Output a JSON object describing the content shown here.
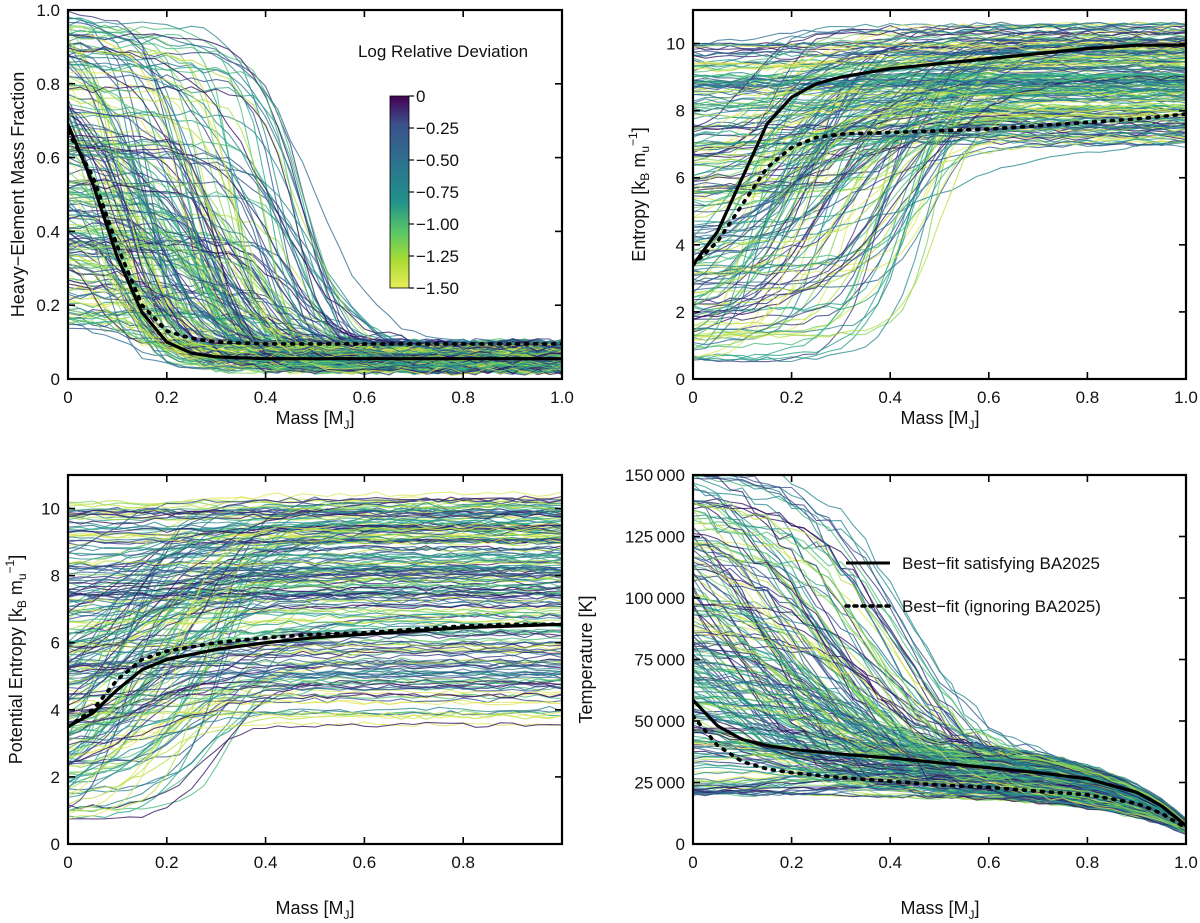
{
  "figure": {
    "colorbar_title": "Log Relative Deviation",
    "colorbar_ticks": [
      "0",
      "−0.25",
      "−0.50",
      "−0.75",
      "−1.00",
      "−1.25",
      "−1.50"
    ],
    "legend": {
      "solid": "Best−fit satisfying BA2025",
      "dotted": "Best−fit (ignoring BA2025)"
    },
    "xlabel_main": "Mass [M",
    "xlabel_sub": "J",
    "xlabel_end": "]"
  },
  "colors": {
    "viridis_dark": "#2c1a6e",
    "viridis_mid": "#24868e",
    "viridis_light": "#e3e94a",
    "best_fit": "#000000"
  },
  "chart_data": [
    {
      "type": "line",
      "ylabel": "Heavy−Element Mass Fraction",
      "xlabel": "Mass [MJ]",
      "xlim": [
        0,
        1.0
      ],
      "ylim": [
        0,
        1.0
      ],
      "xticks": [
        "0",
        "0.2",
        "0.4",
        "0.6",
        "0.8",
        "1.0"
      ],
      "yticks": [
        "0",
        "0.2",
        "0.4",
        "0.6",
        "0.8",
        "1.0"
      ],
      "series": [
        {
          "name": "Best−fit satisfying BA2025",
          "style": "solid",
          "x": [
            0,
            0.05,
            0.1,
            0.15,
            0.2,
            0.25,
            0.3,
            0.4,
            0.6,
            0.8,
            1.0
          ],
          "y": [
            0.69,
            0.53,
            0.33,
            0.18,
            0.1,
            0.07,
            0.06,
            0.055,
            0.055,
            0.055,
            0.055
          ]
        },
        {
          "name": "Best−fit (ignoring BA2025)",
          "style": "dotted",
          "x": [
            0,
            0.05,
            0.1,
            0.15,
            0.2,
            0.25,
            0.3,
            0.4,
            0.6,
            0.8,
            1.0
          ],
          "y": [
            0.67,
            0.55,
            0.36,
            0.2,
            0.13,
            0.11,
            0.1,
            0.095,
            0.095,
            0.095,
            0.095
          ]
        }
      ]
    },
    {
      "type": "line",
      "ylabel": "Entropy [kB mu⁻¹]",
      "xlabel": "Mass [MJ]",
      "xlim": [
        0,
        1.0
      ],
      "ylim": [
        0,
        11
      ],
      "xticks": [
        "0",
        "0.2",
        "0.4",
        "0.6",
        "0.8",
        "1.0"
      ],
      "yticks": [
        "0",
        "2",
        "4",
        "6",
        "8",
        "10"
      ],
      "series": [
        {
          "name": "Best−fit satisfying BA2025",
          "style": "solid",
          "x": [
            0,
            0.05,
            0.1,
            0.15,
            0.2,
            0.25,
            0.3,
            0.4,
            0.5,
            0.6,
            0.7,
            0.8,
            0.9,
            1.0
          ],
          "y": [
            3.4,
            4.4,
            6.0,
            7.6,
            8.4,
            8.8,
            9.0,
            9.25,
            9.4,
            9.55,
            9.7,
            9.85,
            9.95,
            9.95
          ]
        },
        {
          "name": "Best−fit (ignoring BA2025)",
          "style": "dotted",
          "x": [
            0,
            0.05,
            0.1,
            0.15,
            0.2,
            0.25,
            0.3,
            0.4,
            0.5,
            0.6,
            0.7,
            0.8,
            0.9,
            1.0
          ],
          "y": [
            3.4,
            4.1,
            5.2,
            6.3,
            6.9,
            7.2,
            7.3,
            7.35,
            7.4,
            7.45,
            7.55,
            7.65,
            7.75,
            7.9
          ]
        }
      ]
    },
    {
      "type": "line",
      "ylabel": "Potential Entropy [kB mu⁻¹]",
      "xlabel": "Mass [MJ]",
      "xlim": [
        0,
        1.0
      ],
      "ylim": [
        0,
        11
      ],
      "xticks": [
        "0",
        "0.2",
        "0.4",
        "0.6",
        "0.8"
      ],
      "yticks": [
        "0",
        "2",
        "4",
        "6",
        "8",
        "10"
      ],
      "series": [
        {
          "name": "Best−fit satisfying BA2025",
          "style": "solid",
          "x": [
            0,
            0.05,
            0.1,
            0.15,
            0.2,
            0.3,
            0.4,
            0.5,
            0.6,
            0.7,
            0.8,
            0.9,
            1.0
          ],
          "y": [
            3.5,
            3.9,
            4.6,
            5.2,
            5.5,
            5.8,
            6.0,
            6.15,
            6.25,
            6.35,
            6.45,
            6.5,
            6.55
          ]
        },
        {
          "name": "Best−fit (ignoring BA2025)",
          "style": "dotted",
          "x": [
            0,
            0.05,
            0.1,
            0.15,
            0.2,
            0.3,
            0.4,
            0.5,
            0.6,
            0.7,
            0.8,
            0.9,
            1.0
          ],
          "y": [
            3.5,
            4.0,
            4.9,
            5.5,
            5.75,
            6.0,
            6.15,
            6.25,
            6.3,
            6.4,
            6.5,
            6.55,
            6.55
          ]
        }
      ]
    },
    {
      "type": "line",
      "ylabel": "Temperature [K]",
      "xlabel": "Mass [MJ]",
      "xlim": [
        0,
        1.0
      ],
      "ylim": [
        0,
        150000
      ],
      "xticks": [
        "0",
        "0.2",
        "0.4",
        "0.6",
        "0.8",
        "1.0"
      ],
      "yticks": [
        "0",
        "25 000",
        "50 000",
        "75 000",
        "100 000",
        "125 000",
        "150 000"
      ],
      "series": [
        {
          "name": "Best−fit satisfying BA2025",
          "style": "solid",
          "x": [
            0,
            0.05,
            0.1,
            0.15,
            0.2,
            0.3,
            0.4,
            0.5,
            0.6,
            0.7,
            0.8,
            0.9,
            0.95,
            1.0
          ],
          "y": [
            58500,
            48000,
            42500,
            40000,
            38500,
            36500,
            35000,
            33000,
            31000,
            29000,
            26500,
            21000,
            15500,
            7500
          ]
        },
        {
          "name": "Best−fit (ignoring BA2025)",
          "style": "dotted",
          "x": [
            0,
            0.05,
            0.1,
            0.15,
            0.2,
            0.3,
            0.4,
            0.5,
            0.6,
            0.7,
            0.8,
            0.9,
            0.95,
            1.0
          ],
          "y": [
            52000,
            40000,
            33500,
            30500,
            29000,
            27000,
            25500,
            24000,
            23000,
            21500,
            20000,
            16500,
            12500,
            6500
          ]
        }
      ]
    }
  ]
}
